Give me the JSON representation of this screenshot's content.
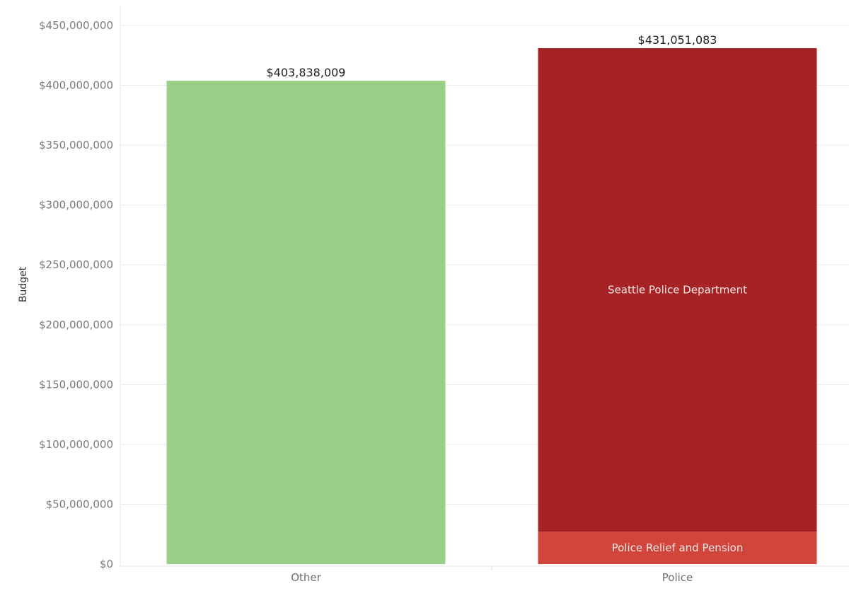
{
  "chart_data": {
    "type": "bar",
    "stacked": true,
    "ylabel": "Budget",
    "xlabel": "",
    "ylim": [
      0,
      450000000
    ],
    "y_ticks": [
      0,
      50000000,
      100000000,
      150000000,
      200000000,
      250000000,
      300000000,
      350000000,
      400000000,
      450000000
    ],
    "y_tick_labels": [
      "$0",
      "$50,000,000",
      "$100,000,000",
      "$150,000,000",
      "$200,000,000",
      "$250,000,000",
      "$300,000,000",
      "$350,000,000",
      "$400,000,000",
      "$450,000,000"
    ],
    "grid": true,
    "legend": "none",
    "categories": [
      "Other",
      "Police"
    ],
    "bars": [
      {
        "category": "Other",
        "total": 403838009,
        "total_label": "$403,838,009",
        "segments": [
          {
            "name": "",
            "value": 403838009,
            "color": "#9bce87"
          }
        ]
      },
      {
        "category": "Police",
        "total": 431051083,
        "total_label": "$431,051,083",
        "segments": [
          {
            "name": "Police Relief and Pension",
            "value": 27000000,
            "color": "#d1453a"
          },
          {
            "name": "Seattle Police Department",
            "value": 404051083,
            "color": "#a52325"
          }
        ]
      }
    ]
  }
}
